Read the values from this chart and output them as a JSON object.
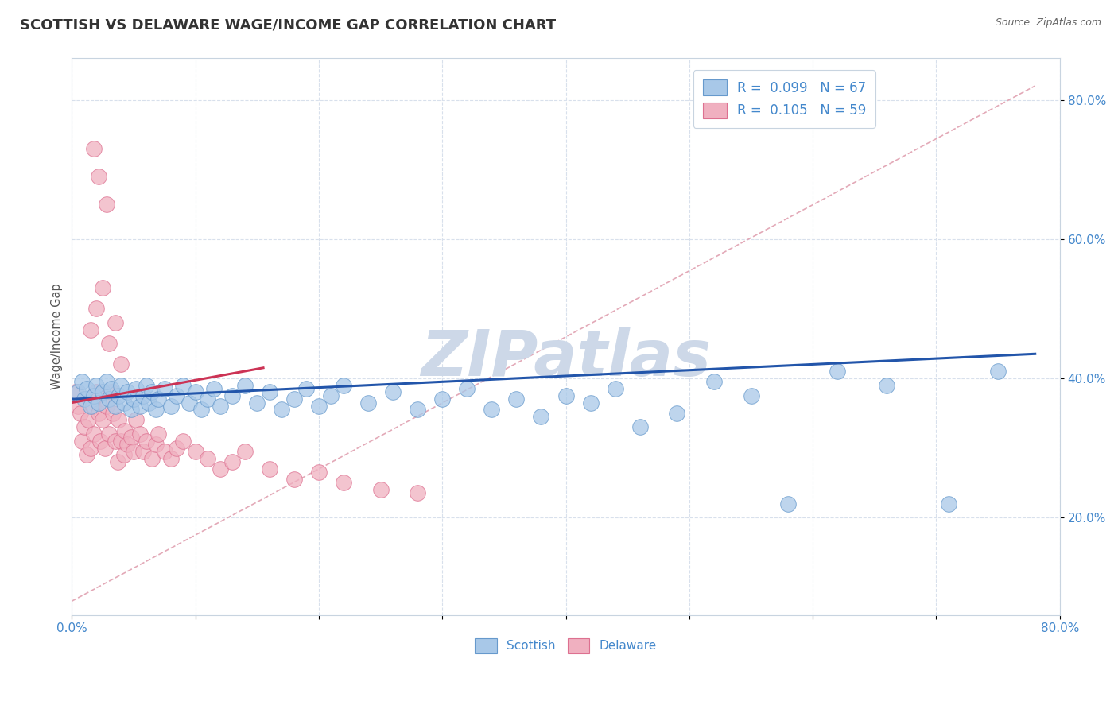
{
  "title": "SCOTTISH VS DELAWARE WAGE/INCOME GAP CORRELATION CHART",
  "source_text": "Source: ZipAtlas.com",
  "ylabel": "Wage/Income Gap",
  "yaxis_ticks": [
    0.2,
    0.4,
    0.6,
    0.8
  ],
  "yaxis_labels": [
    "20.0%",
    "40.0%",
    "60.0%",
    "80.0%"
  ],
  "xlim": [
    0.0,
    0.8
  ],
  "ylim": [
    0.06,
    0.86
  ],
  "legend_label_scottish": "R =  0.099   N = 67",
  "legend_label_delaware": "R =  0.105   N = 59",
  "watermark": "ZIPatlas",
  "watermark_color": "#cdd8e8",
  "scottish_dot_fill": "#a8c8e8",
  "scottish_dot_edge": "#6699cc",
  "delaware_dot_fill": "#f0b0c0",
  "delaware_dot_edge": "#dd7090",
  "trend_scottish_color": "#2255aa",
  "trend_delaware_color": "#cc3355",
  "ref_line_color": "#e0a0b0",
  "background_color": "#ffffff",
  "title_color": "#333333",
  "title_fontsize": 13,
  "axis_label_color": "#4488cc",
  "grid_color": "#d8e0ec",
  "scottish_x": [
    0.005,
    0.008,
    0.01,
    0.012,
    0.015,
    0.018,
    0.02,
    0.022,
    0.025,
    0.028,
    0.03,
    0.032,
    0.035,
    0.038,
    0.04,
    0.042,
    0.045,
    0.048,
    0.05,
    0.052,
    0.055,
    0.058,
    0.06,
    0.062,
    0.065,
    0.068,
    0.07,
    0.075,
    0.08,
    0.085,
    0.09,
    0.095,
    0.1,
    0.105,
    0.11,
    0.115,
    0.12,
    0.13,
    0.14,
    0.15,
    0.16,
    0.17,
    0.18,
    0.19,
    0.2,
    0.21,
    0.22,
    0.24,
    0.26,
    0.28,
    0.3,
    0.32,
    0.34,
    0.36,
    0.38,
    0.4,
    0.42,
    0.44,
    0.46,
    0.49,
    0.52,
    0.55,
    0.58,
    0.62,
    0.66,
    0.71,
    0.75
  ],
  "scottish_y": [
    0.38,
    0.395,
    0.37,
    0.385,
    0.36,
    0.375,
    0.39,
    0.365,
    0.38,
    0.395,
    0.37,
    0.385,
    0.36,
    0.375,
    0.39,
    0.365,
    0.38,
    0.355,
    0.37,
    0.385,
    0.36,
    0.375,
    0.39,
    0.365,
    0.38,
    0.355,
    0.37,
    0.385,
    0.36,
    0.375,
    0.39,
    0.365,
    0.38,
    0.355,
    0.37,
    0.385,
    0.36,
    0.375,
    0.39,
    0.365,
    0.38,
    0.355,
    0.37,
    0.385,
    0.36,
    0.375,
    0.39,
    0.365,
    0.38,
    0.355,
    0.37,
    0.385,
    0.355,
    0.37,
    0.345,
    0.375,
    0.365,
    0.385,
    0.33,
    0.35,
    0.395,
    0.375,
    0.22,
    0.41,
    0.39,
    0.22,
    0.41
  ],
  "delaware_x": [
    0.003,
    0.005,
    0.007,
    0.008,
    0.01,
    0.012,
    0.013,
    0.015,
    0.017,
    0.018,
    0.02,
    0.022,
    0.023,
    0.025,
    0.027,
    0.028,
    0.03,
    0.032,
    0.033,
    0.035,
    0.037,
    0.038,
    0.04,
    0.042,
    0.043,
    0.045,
    0.048,
    0.05,
    0.052,
    0.055,
    0.058,
    0.06,
    0.065,
    0.068,
    0.07,
    0.075,
    0.08,
    0.085,
    0.09,
    0.1,
    0.11,
    0.12,
    0.13,
    0.14,
    0.16,
    0.18,
    0.2,
    0.22,
    0.25,
    0.28,
    0.015,
    0.02,
    0.025,
    0.03,
    0.035,
    0.04,
    0.018,
    0.022,
    0.028
  ],
  "delaware_y": [
    0.38,
    0.36,
    0.35,
    0.31,
    0.33,
    0.29,
    0.34,
    0.3,
    0.36,
    0.32,
    0.38,
    0.35,
    0.31,
    0.34,
    0.3,
    0.36,
    0.32,
    0.38,
    0.35,
    0.31,
    0.28,
    0.34,
    0.31,
    0.29,
    0.325,
    0.305,
    0.315,
    0.295,
    0.34,
    0.32,
    0.295,
    0.31,
    0.285,
    0.305,
    0.32,
    0.295,
    0.285,
    0.3,
    0.31,
    0.295,
    0.285,
    0.27,
    0.28,
    0.295,
    0.27,
    0.255,
    0.265,
    0.25,
    0.24,
    0.235,
    0.47,
    0.5,
    0.53,
    0.45,
    0.48,
    0.42,
    0.73,
    0.69,
    0.65
  ],
  "trend_scottish_x0": 0.0,
  "trend_scottish_x1": 0.78,
  "trend_scottish_y0": 0.37,
  "trend_scottish_y1": 0.435,
  "trend_delaware_x0": 0.0,
  "trend_delaware_x1": 0.155,
  "trend_delaware_y0": 0.365,
  "trend_delaware_y1": 0.415,
  "ref_line_x0": 0.0,
  "ref_line_x1": 0.78,
  "ref_line_y0": 0.08,
  "ref_line_y1": 0.82
}
